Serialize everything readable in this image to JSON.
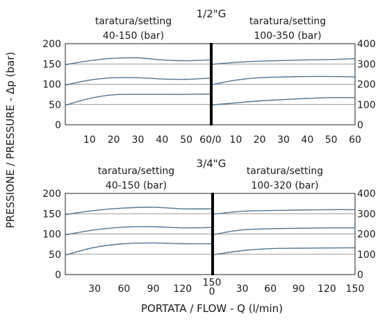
{
  "figure": {
    "ylabel": "PRESSIONE / PRESSURE - Δp (bar)",
    "xlabel": "PORTATA / FLOW - Q (l/min)"
  },
  "chart_data": [
    {
      "type": "line",
      "title": "1/2\"G",
      "left": {
        "setting": "taratura/setting",
        "range": "40-150 (bar)",
        "xlim": [
          0,
          60
        ],
        "ylim": [
          0,
          200
        ],
        "x_ticks": [
          "10",
          "20",
          "30",
          "40",
          "50"
        ],
        "y_ticks": [
          "0",
          "50",
          "100",
          "150",
          "200"
        ],
        "series": [
          {
            "x": [
              0,
              10,
              20,
              30,
              40,
              50,
              60
            ],
            "values": [
              148,
              158,
              164,
              165,
              160,
              158,
              160
            ]
          },
          {
            "x": [
              0,
              10,
              20,
              30,
              40,
              50,
              60
            ],
            "values": [
              98,
              110,
              116,
              116,
              113,
              112,
              115
            ]
          },
          {
            "x": [
              0,
              10,
              20,
              30,
              40,
              50,
              60
            ],
            "values": [
              48,
              65,
              74,
              75,
              75,
              75,
              76
            ]
          }
        ]
      },
      "right": {
        "setting": "taratura/setting",
        "range": "100-350 (bar)",
        "xlim": [
          0,
          60
        ],
        "ylim": [
          0,
          400
        ],
        "x_ticks": [
          "60/0",
          "10",
          "20",
          "30",
          "40",
          "50",
          "60"
        ],
        "y_ticks": [
          "0",
          "100",
          "200",
          "300",
          "400"
        ],
        "series": [
          {
            "x": [
              0,
              10,
              20,
              30,
              40,
              50,
              60
            ],
            "values": [
              298,
              308,
              314,
              317,
              320,
              322,
              326
            ]
          },
          {
            "x": [
              0,
              10,
              20,
              30,
              40,
              50,
              60
            ],
            "values": [
              198,
              220,
              232,
              236,
              238,
              238,
              236
            ]
          },
          {
            "x": [
              0,
              10,
              20,
              30,
              40,
              50,
              60
            ],
            "values": [
              98,
              108,
              118,
              124,
              130,
              134,
              134
            ]
          }
        ]
      }
    },
    {
      "type": "line",
      "title": "3/4\"G",
      "left": {
        "setting": "taratura/setting",
        "range": "40-150 (bar)",
        "xlim": [
          0,
          150
        ],
        "ylim": [
          0,
          200
        ],
        "x_ticks": [
          "30",
          "60",
          "90",
          "120"
        ],
        "y_ticks": [
          "0",
          "50",
          "100",
          "150",
          "200"
        ],
        "series": [
          {
            "x": [
              0,
              30,
              60,
              90,
              120,
              150
            ],
            "values": [
              148,
              158,
              164,
              166,
              162,
              162
            ]
          },
          {
            "x": [
              0,
              30,
              60,
              90,
              120,
              150
            ],
            "values": [
              98,
              110,
              117,
              118,
              115,
              116
            ]
          },
          {
            "x": [
              0,
              30,
              60,
              90,
              120,
              150
            ],
            "values": [
              48,
              67,
              76,
              78,
              76,
              76
            ]
          }
        ]
      },
      "right": {
        "setting": "taratura/setting",
        "range": "100-320 (bar)",
        "xlim": [
          0,
          150
        ],
        "ylim": [
          0,
          400
        ],
        "x_ticks": [
          "150/0",
          "30",
          "60",
          "90",
          "120",
          "150"
        ],
        "y_ticks": [
          "0",
          "100",
          "200",
          "300",
          "400"
        ],
        "series": [
          {
            "x": [
              0,
              30,
              60,
              90,
              120,
              150
            ],
            "values": [
              298,
              312,
              316,
              318,
              320,
              320
            ]
          },
          {
            "x": [
              0,
              30,
              60,
              90,
              120,
              150
            ],
            "values": [
              198,
              220,
              226,
              228,
              230,
              230
            ]
          },
          {
            "x": [
              0,
              30,
              60,
              90,
              120,
              150
            ],
            "values": [
              98,
              118,
              128,
              130,
              131,
              132
            ]
          }
        ]
      }
    }
  ]
}
